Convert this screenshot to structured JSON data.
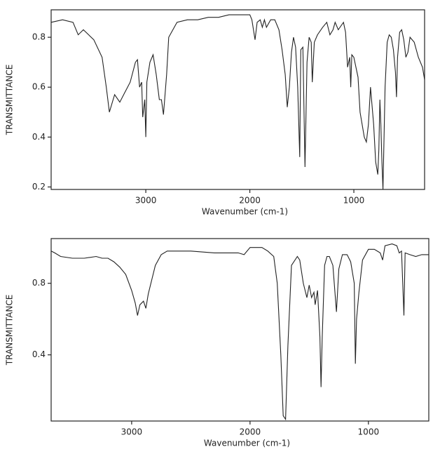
{
  "chart_data": [
    {
      "type": "line",
      "x_label": "Wavenumber (cm-1)",
      "y_label": "TRANSMITTANCE",
      "xlim": [
        3910,
        320
      ],
      "ylim": [
        0.19,
        0.91
      ],
      "xticks": [
        3000,
        2000,
        1000
      ],
      "yticks": [
        0.2,
        0.4,
        0.6,
        0.8
      ],
      "grid": false,
      "series": [
        {
          "color": "#222222",
          "x": [
            3910,
            3800,
            3700,
            3650,
            3600,
            3500,
            3420,
            3380,
            3350,
            3300,
            3250,
            3200,
            3150,
            3100,
            3080,
            3060,
            3040,
            3030,
            3010,
            3000,
            2990,
            2960,
            2930,
            2900,
            2870,
            2850,
            2830,
            2800,
            2780,
            2700,
            2600,
            2500,
            2400,
            2300,
            2200,
            2100,
            2000,
            1980,
            1950,
            1930,
            1900,
            1880,
            1860,
            1840,
            1800,
            1760,
            1720,
            1690,
            1660,
            1640,
            1620,
            1600,
            1580,
            1560,
            1540,
            1520,
            1510,
            1490,
            1470,
            1450,
            1430,
            1410,
            1400,
            1380,
            1350,
            1300,
            1260,
            1230,
            1200,
            1180,
            1150,
            1100,
            1080,
            1060,
            1040,
            1030,
            1020,
            1000,
            980,
            960,
            940,
            900,
            880,
            860,
            840,
            830,
            810,
            790,
            770,
            760,
            750,
            740,
            730,
            720,
            700,
            680,
            660,
            640,
            620,
            600,
            590,
            580,
            560,
            540,
            520,
            500,
            480,
            460,
            420,
            380,
            340,
            320
          ],
          "values": [
            0.86,
            0.87,
            0.86,
            0.81,
            0.83,
            0.79,
            0.72,
            0.6,
            0.5,
            0.57,
            0.54,
            0.58,
            0.62,
            0.7,
            0.71,
            0.6,
            0.62,
            0.48,
            0.55,
            0.4,
            0.62,
            0.7,
            0.73,
            0.65,
            0.55,
            0.55,
            0.49,
            0.65,
            0.8,
            0.86,
            0.87,
            0.87,
            0.88,
            0.88,
            0.89,
            0.89,
            0.89,
            0.87,
            0.79,
            0.86,
            0.87,
            0.84,
            0.87,
            0.84,
            0.87,
            0.87,
            0.83,
            0.75,
            0.65,
            0.52,
            0.6,
            0.74,
            0.8,
            0.76,
            0.6,
            0.32,
            0.75,
            0.76,
            0.28,
            0.7,
            0.8,
            0.78,
            0.62,
            0.78,
            0.81,
            0.84,
            0.86,
            0.81,
            0.83,
            0.86,
            0.83,
            0.86,
            0.82,
            0.68,
            0.72,
            0.6,
            0.73,
            0.72,
            0.68,
            0.64,
            0.5,
            0.4,
            0.38,
            0.45,
            0.6,
            0.55,
            0.45,
            0.3,
            0.25,
            0.35,
            0.55,
            0.45,
            0.3,
            0.19,
            0.6,
            0.78,
            0.81,
            0.8,
            0.75,
            0.66,
            0.56,
            0.72,
            0.82,
            0.83,
            0.79,
            0.72,
            0.74,
            0.8,
            0.78,
            0.72,
            0.68,
            0.63
          ]
        }
      ]
    },
    {
      "type": "line",
      "x_label": "Wavenumber (cm-1)",
      "y_label": "TRANSMITTANCE",
      "xlim": [
        3680,
        490
      ],
      "ylim": [
        0.03,
        1.05
      ],
      "xticks": [
        3000,
        2000,
        1000
      ],
      "yticks": [
        0.4,
        0.8
      ],
      "grid": false,
      "series": [
        {
          "color": "#222222",
          "x": [
            3680,
            3650,
            3600,
            3500,
            3400,
            3300,
            3250,
            3200,
            3150,
            3100,
            3050,
            3000,
            2970,
            2950,
            2930,
            2900,
            2880,
            2860,
            2800,
            2750,
            2700,
            2500,
            2300,
            2200,
            2100,
            2050,
            2000,
            1900,
            1850,
            1800,
            1770,
            1740,
            1720,
            1700,
            1680,
            1650,
            1600,
            1580,
            1550,
            1520,
            1500,
            1480,
            1460,
            1450,
            1430,
            1410,
            1400,
            1390,
            1370,
            1350,
            1330,
            1300,
            1270,
            1250,
            1220,
            1180,
            1150,
            1120,
            1110,
            1100,
            1080,
            1050,
            1000,
            950,
            900,
            880,
            860,
            800,
            760,
            740,
            720,
            700,
            690,
            650,
            600,
            550,
            490
          ],
          "values": [
            0.98,
            0.97,
            0.95,
            0.94,
            0.94,
            0.95,
            0.94,
            0.94,
            0.92,
            0.89,
            0.85,
            0.76,
            0.69,
            0.62,
            0.68,
            0.7,
            0.66,
            0.74,
            0.9,
            0.96,
            0.98,
            0.98,
            0.97,
            0.97,
            0.97,
            0.96,
            1.0,
            1.0,
            0.98,
            0.95,
            0.8,
            0.4,
            0.06,
            0.04,
            0.45,
            0.9,
            0.95,
            0.93,
            0.8,
            0.72,
            0.79,
            0.72,
            0.75,
            0.68,
            0.76,
            0.5,
            0.22,
            0.5,
            0.9,
            0.95,
            0.95,
            0.9,
            0.64,
            0.88,
            0.96,
            0.96,
            0.92,
            0.8,
            0.35,
            0.6,
            0.75,
            0.93,
            0.99,
            0.99,
            0.97,
            0.93,
            1.01,
            1.02,
            1.01,
            0.97,
            0.98,
            0.62,
            0.97,
            0.96,
            0.95,
            0.96,
            0.96
          ]
        }
      ]
    }
  ]
}
